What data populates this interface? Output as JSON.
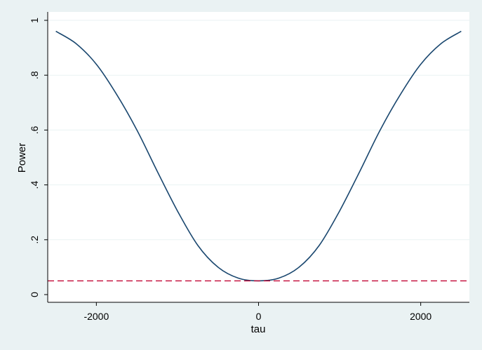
{
  "chart_data": {
    "type": "line",
    "title": "",
    "xlabel": "tau",
    "ylabel": "Power",
    "xlim": [
      -2600,
      2600
    ],
    "ylim": [
      0,
      1
    ],
    "x_ticks": [
      -2000,
      0,
      2000
    ],
    "x_tick_labels": [
      "-2000",
      "0",
      "2000"
    ],
    "y_ticks": [
      0,
      0.2,
      0.4,
      0.6,
      0.8,
      1
    ],
    "y_tick_labels": [
      "0",
      ".2",
      ".4",
      ".6",
      ".8",
      "1"
    ],
    "grid": "horizontal",
    "legend": "none",
    "series": [
      {
        "style": "solid",
        "color": "#1a476f",
        "x": [
          -2500,
          -2250,
          -2000,
          -1750,
          -1500,
          -1250,
          -1000,
          -750,
          -500,
          -250,
          0,
          250,
          500,
          750,
          1000,
          1250,
          1500,
          1750,
          2000,
          2250,
          2500
        ],
        "y": [
          0.96,
          0.915,
          0.84,
          0.73,
          0.6,
          0.45,
          0.305,
          0.18,
          0.1,
          0.06,
          0.05,
          0.06,
          0.1,
          0.18,
          0.305,
          0.45,
          0.6,
          0.73,
          0.84,
          0.915,
          0.96
        ]
      },
      {
        "style": "dashed",
        "color": "#c10534",
        "x": [
          -2600,
          2600
        ],
        "y": [
          0.05,
          0.05
        ]
      }
    ]
  }
}
